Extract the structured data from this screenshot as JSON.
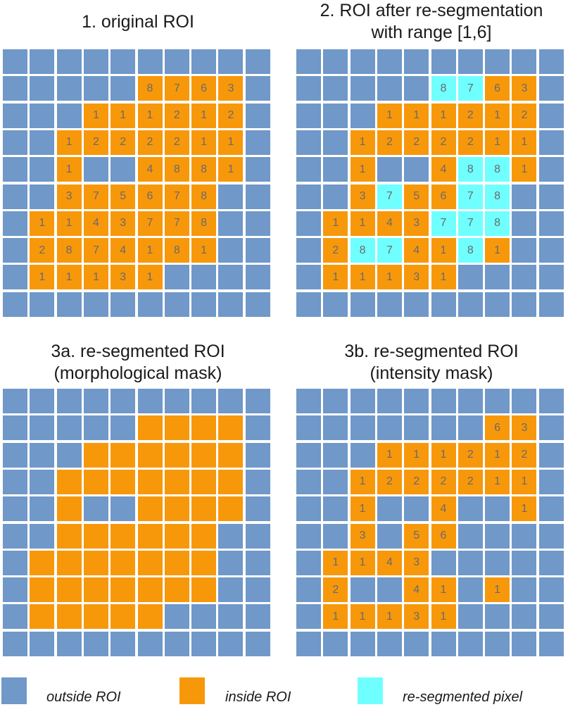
{
  "colors": {
    "outside": "#7098c8",
    "inside": "#f7980b",
    "resegmented": "#70ffff",
    "cell_text": "#6a6a6a"
  },
  "panels": [
    {
      "id": "p1",
      "title": "1. original ROI",
      "grid": [
        "o,o,o,o,o,o,o,o,o,o",
        "o,o,o,o,o,i8,i7,i6,i3,o",
        "o,o,o,i1,i1,i1,i2,i1,i2,o",
        "o,o,i1,i2,i2,i2,i2,i1,i1,o",
        "o,o,i1,o,o,i4,i8,i8,i1,o",
        "o,o,i3,i7,i5,i6,i7,i8,o,o",
        "o,i1,i1,i4,i3,i7,i7,i8,o,o",
        "o,i2,i8,i7,i4,i1,i8,i1,o,o",
        "o,i1,i1,i1,i3,i1,o,o,o,o",
        "o,o,o,o,o,o,o,o,o,o"
      ]
    },
    {
      "id": "p2",
      "title": "2. ROI after re-segmentation\nwith range [1,6]",
      "grid": [
        "o,o,o,o,o,o,o,o,o,o",
        "o,o,o,o,o,r8,r7,i6,i3,o",
        "o,o,o,i1,i1,i1,i2,i1,i2,o",
        "o,o,i1,i2,i2,i2,i2,i1,i1,o",
        "o,o,i1,o,o,i4,r8,r8,i1,o",
        "o,o,i3,r7,i5,i6,r7,r8,o,o",
        "o,i1,i1,i4,i3,r7,r7,r8,o,o",
        "o,i2,r8,r7,i4,i1,r8,i1,o,o",
        "o,i1,i1,i1,i3,i1,o,o,o,o",
        "o,o,o,o,o,o,o,o,o,o"
      ]
    },
    {
      "id": "p3a",
      "title": "3a. re-segmented ROI\n(morphological mask)",
      "grid": [
        "o,o,o,o,o,o,o,o,o,o",
        "o,o,o,o,o,i,i,i,i,o",
        "o,o,o,i,i,i,i,i,i,o",
        "o,o,i,i,i,i,i,i,i,o",
        "o,o,i,o,o,i,i,i,i,o",
        "o,o,i,i,i,i,i,i,o,o",
        "o,i,i,i,i,i,i,i,o,o",
        "o,i,i,i,i,i,i,i,o,o",
        "o,i,i,i,i,i,o,o,o,o",
        "o,o,o,o,o,o,o,o,o,o"
      ]
    },
    {
      "id": "p3b",
      "title": "3b. re-segmented ROI\n(intensity mask)",
      "grid": [
        "o,o,o,o,o,o,o,o,o,o",
        "o,o,o,o,o,o,o,i6,i3,o",
        "o,o,o,i1,i1,i1,i2,i1,i2,o",
        "o,o,i1,i2,i2,i2,i2,i1,i1,o",
        "o,o,i1,o,o,i4,o,o,i1,o",
        "o,o,i3,o,i5,i6,o,o,o,o",
        "o,i1,i1,i4,i3,o,o,o,o,o",
        "o,i2,o,o,i4,i1,o,i1,o,o",
        "o,i1,i1,i1,i3,i1,o,o,o,o",
        "o,o,o,o,o,o,o,o,o,o"
      ]
    }
  ],
  "legend": {
    "outside_label": "outside ROI",
    "inside_label": "inside ROI",
    "resegmented_label": "re-segmented pixel"
  }
}
